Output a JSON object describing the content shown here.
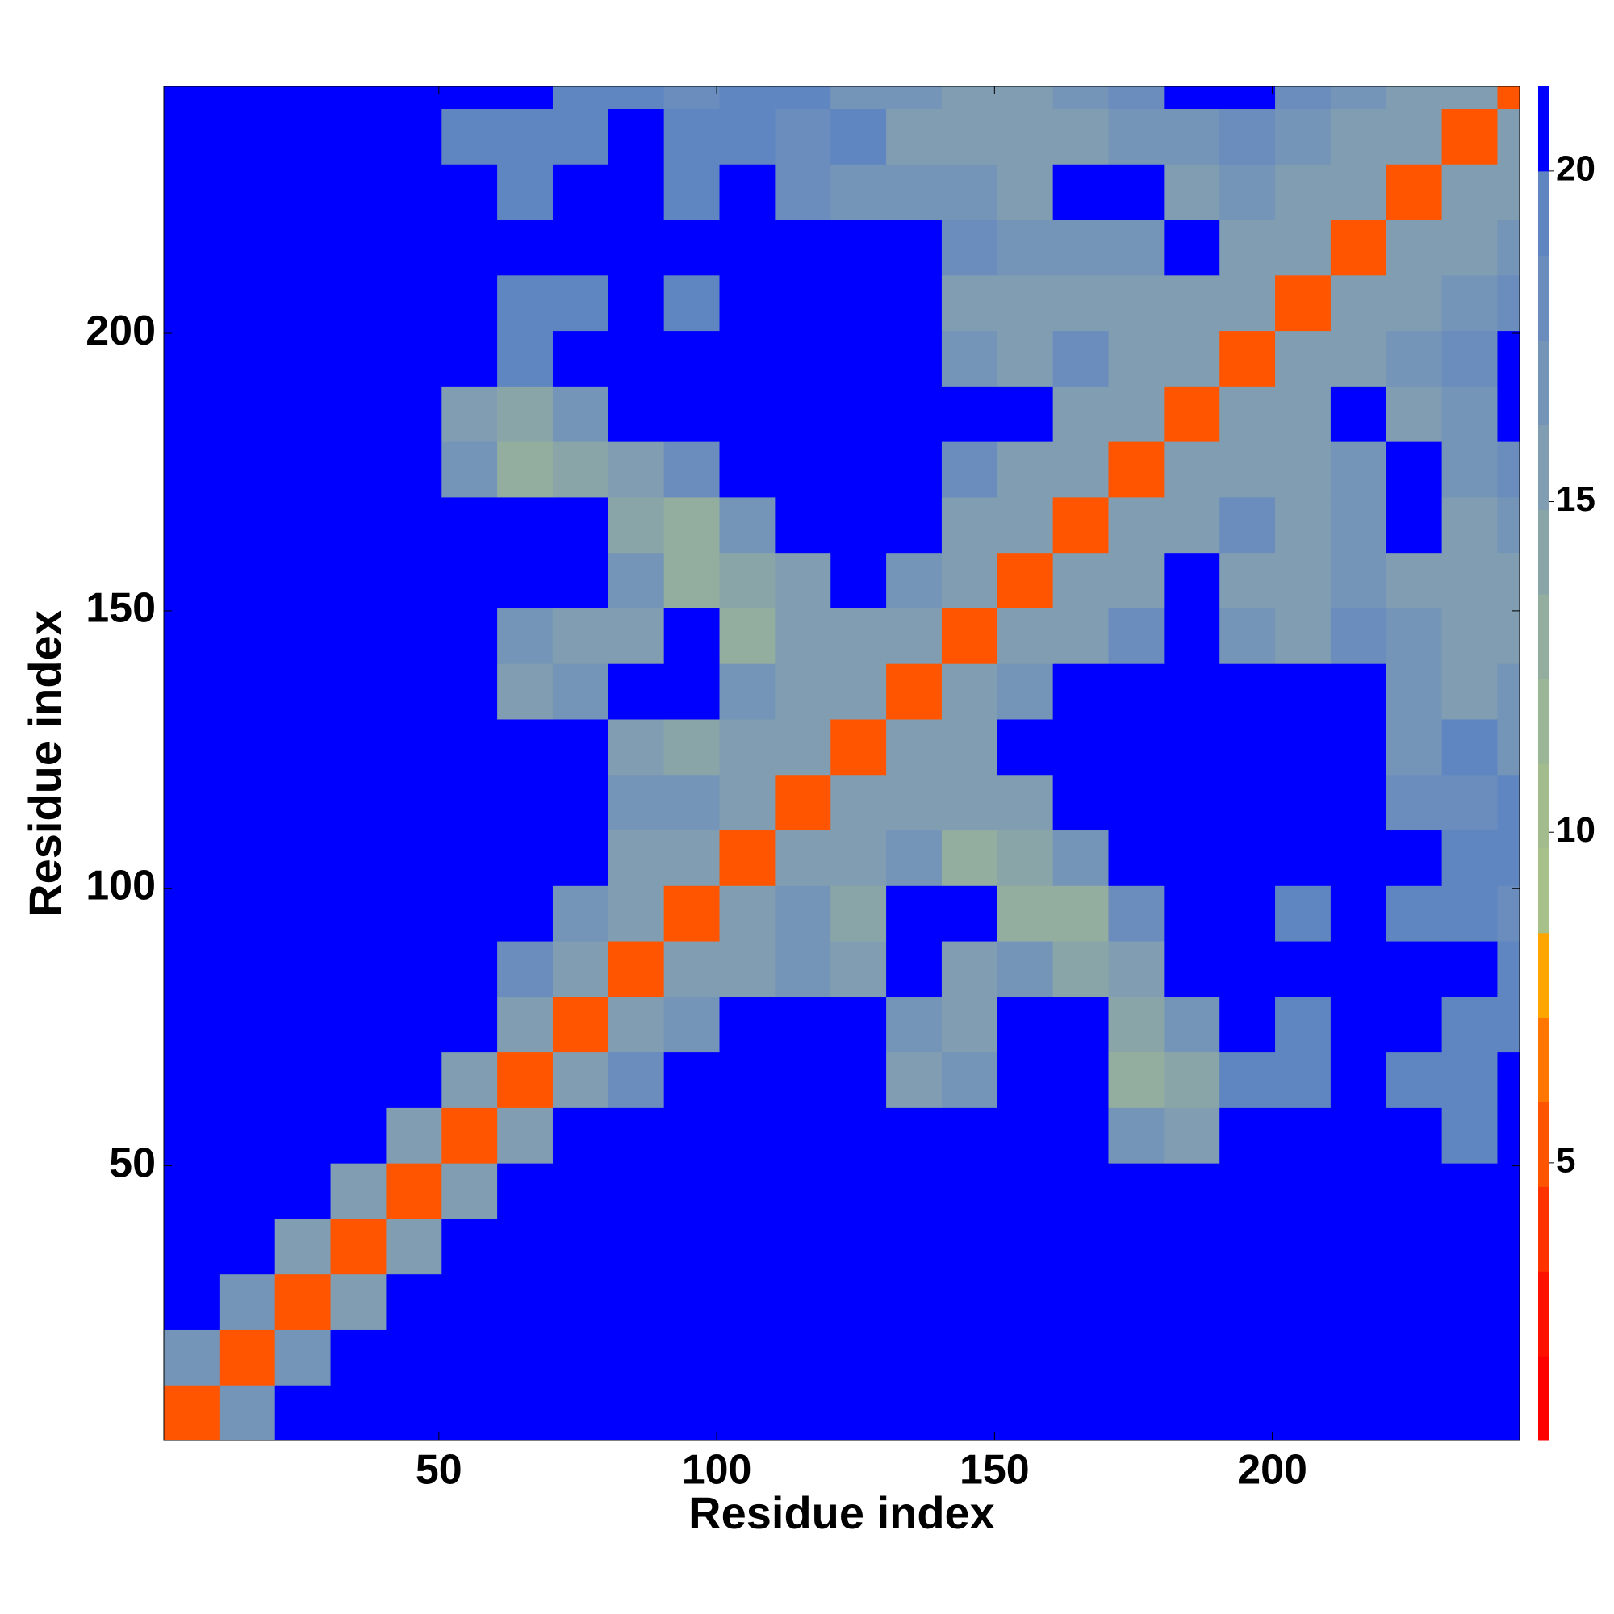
{
  "chart_data": {
    "type": "heatmap",
    "x_label": "Residue index",
    "y_label": "Residue index",
    "x_bins": [
      0.5,
      10.5,
      20.5,
      30.5,
      40.5,
      50.5,
      60.5,
      70.5,
      80.5,
      90.5,
      100.5,
      110.5,
      120.5,
      130.5,
      140.5,
      150.5,
      160.5,
      170.5,
      180.5,
      190.5,
      200.5,
      210.5,
      220.5,
      230.5,
      240.5,
      244.5
    ],
    "y_bins": [
      0.5,
      10.5,
      20.5,
      30.5,
      40.5,
      50.5,
      60.5,
      70.5,
      80.5,
      90.5,
      100.5,
      110.5,
      120.5,
      130.5,
      140.5,
      150.5,
      160.5,
      170.5,
      180.5,
      190.5,
      200.5,
      210.5,
      220.5,
      230.5,
      240.5,
      244.5
    ],
    "xlim": [
      0.5,
      244.5
    ],
    "ylim": [
      0.5,
      244.5
    ],
    "xticks": [
      50,
      100,
      150,
      200
    ],
    "yticks": [
      50,
      100,
      150,
      200
    ],
    "z": [
      [
        5,
        17,
        21,
        21,
        21,
        21,
        21,
        21,
        21,
        21,
        21,
        21,
        21,
        21,
        21,
        21,
        21,
        21,
        21,
        21,
        21,
        21,
        21,
        21,
        21
      ],
      [
        17,
        5,
        17,
        21,
        21,
        21,
        21,
        21,
        21,
        21,
        21,
        21,
        21,
        21,
        21,
        21,
        21,
        21,
        21,
        21,
        21,
        21,
        21,
        21,
        21
      ],
      [
        21,
        17,
        5,
        16,
        21,
        21,
        21,
        21,
        21,
        21,
        21,
        21,
        21,
        21,
        21,
        21,
        21,
        21,
        21,
        21,
        21,
        21,
        21,
        21,
        21
      ],
      [
        21,
        21,
        16,
        5,
        15,
        21,
        21,
        21,
        21,
        21,
        21,
        21,
        21,
        21,
        21,
        21,
        21,
        21,
        21,
        21,
        21,
        21,
        21,
        21,
        21
      ],
      [
        21,
        21,
        21,
        15,
        5,
        15,
        21,
        21,
        21,
        21,
        21,
        21,
        21,
        21,
        21,
        21,
        21,
        21,
        21,
        21,
        21,
        21,
        21,
        21,
        21
      ],
      [
        21,
        21,
        21,
        21,
        15,
        5,
        15,
        21,
        21,
        21,
        21,
        21,
        21,
        21,
        21,
        21,
        21,
        17,
        15,
        21,
        21,
        21,
        21,
        19,
        21
      ],
      [
        21,
        21,
        21,
        21,
        21,
        15,
        5,
        15,
        18,
        21,
        21,
        21,
        21,
        16,
        17,
        21,
        21,
        13,
        14,
        20,
        19,
        21,
        19,
        19,
        21
      ],
      [
        21,
        21,
        21,
        21,
        21,
        21,
        15,
        5,
        15,
        17,
        21,
        21,
        21,
        17,
        15,
        21,
        21,
        14,
        17,
        21,
        20,
        21,
        21,
        19,
        19
      ],
      [
        21,
        21,
        21,
        21,
        21,
        21,
        18,
        15,
        5,
        15,
        16,
        17,
        15,
        21,
        16,
        17,
        14,
        15,
        21,
        21,
        21,
        21,
        21,
        21,
        19
      ],
      [
        21,
        21,
        21,
        21,
        21,
        21,
        21,
        17,
        15,
        5,
        15,
        17,
        14,
        21,
        21,
        13,
        13,
        18,
        21,
        21,
        19,
        21,
        19,
        19,
        18
      ],
      [
        21,
        21,
        21,
        21,
        21,
        21,
        21,
        21,
        16,
        15,
        5,
        15,
        15,
        17,
        13,
        14,
        17,
        21,
        21,
        21,
        21,
        21,
        21,
        19,
        19
      ],
      [
        21,
        21,
        21,
        21,
        21,
        21,
        21,
        21,
        17,
        17,
        15,
        5,
        15,
        16,
        15,
        16,
        21,
        21,
        21,
        21,
        21,
        21,
        18,
        18,
        19
      ],
      [
        21,
        21,
        21,
        21,
        21,
        21,
        21,
        21,
        15,
        14,
        15,
        15,
        5,
        15,
        16,
        21,
        21,
        21,
        21,
        21,
        21,
        21,
        17,
        19,
        17
      ],
      [
        21,
        21,
        21,
        21,
        21,
        21,
        16,
        17,
        21,
        21,
        17,
        16,
        15,
        5,
        15,
        17,
        21,
        21,
        21,
        21,
        21,
        21,
        17,
        16,
        17
      ],
      [
        21,
        21,
        21,
        21,
        21,
        21,
        17,
        15,
        16,
        21,
        13,
        15,
        16,
        15,
        5,
        15,
        16,
        18,
        21,
        17,
        15,
        18,
        17,
        15,
        16
      ],
      [
        21,
        21,
        21,
        21,
        21,
        21,
        21,
        21,
        17,
        13,
        14,
        16,
        21,
        17,
        15,
        5,
        15,
        16,
        21,
        16,
        15,
        17,
        16,
        15,
        16
      ],
      [
        21,
        21,
        21,
        21,
        21,
        21,
        21,
        21,
        14,
        13,
        17,
        21,
        21,
        21,
        16,
        15,
        5,
        15,
        16,
        18,
        16,
        17,
        21,
        16,
        17
      ],
      [
        21,
        21,
        21,
        21,
        21,
        17,
        13,
        14,
        15,
        18,
        21,
        21,
        21,
        21,
        18,
        16,
        15,
        5,
        15,
        16,
        16,
        17,
        21,
        17,
        18
      ],
      [
        21,
        21,
        21,
        21,
        21,
        15,
        14,
        17,
        21,
        21,
        21,
        21,
        21,
        21,
        21,
        21,
        16,
        15,
        5,
        15,
        16,
        21,
        16,
        17,
        21
      ],
      [
        21,
        21,
        21,
        21,
        21,
        21,
        20,
        21,
        21,
        21,
        21,
        21,
        21,
        21,
        17,
        16,
        18,
        16,
        15,
        5,
        15,
        16,
        17,
        18,
        21
      ],
      [
        21,
        21,
        21,
        21,
        21,
        21,
        19,
        20,
        21,
        19,
        21,
        21,
        21,
        21,
        15,
        15,
        16,
        16,
        16,
        15,
        5,
        15,
        16,
        17,
        18
      ],
      [
        21,
        21,
        21,
        21,
        21,
        21,
        21,
        21,
        21,
        21,
        21,
        21,
        21,
        21,
        18,
        17,
        17,
        17,
        21,
        16,
        15,
        5,
        15,
        16,
        17
      ],
      [
        21,
        21,
        21,
        21,
        21,
        21,
        19,
        21,
        21,
        19,
        21,
        18,
        17,
        17,
        17,
        16,
        21,
        21,
        16,
        17,
        16,
        15,
        5,
        15,
        15
      ],
      [
        21,
        21,
        21,
        21,
        21,
        19,
        19,
        19,
        21,
        19,
        19,
        18,
        19,
        16,
        15,
        15,
        16,
        17,
        17,
        18,
        17,
        16,
        15,
        5,
        15
      ],
      [
        21,
        21,
        21,
        21,
        21,
        21,
        21,
        19,
        19,
        18,
        19,
        19,
        17,
        17,
        16,
        16,
        17,
        18,
        21,
        21,
        18,
        17,
        15,
        15,
        5
      ]
    ],
    "colorbar": {
      "lim": [
        0.8,
        21.28
      ],
      "ticks": [
        5,
        10,
        15,
        20
      ],
      "levels": [
        0.8,
        2.08,
        3.36,
        4.64,
        5.92,
        7.2,
        8.48,
        9.76,
        11.04,
        12.32,
        13.6,
        14.88,
        16.16,
        17.44,
        18.72,
        20.0,
        21.28
      ],
      "colors": [
        "#ff0000",
        "#ff1100",
        "#ff3300",
        "#ff5500",
        "#ff7700",
        "#ffa500",
        "#a8c08a",
        "#a2bc8e",
        "#9bb597",
        "#93ad9f",
        "#8aa5a8",
        "#809db1",
        "#7595b8",
        "#6a8dbe",
        "#5f86c1",
        "#0000ff"
      ]
    }
  }
}
